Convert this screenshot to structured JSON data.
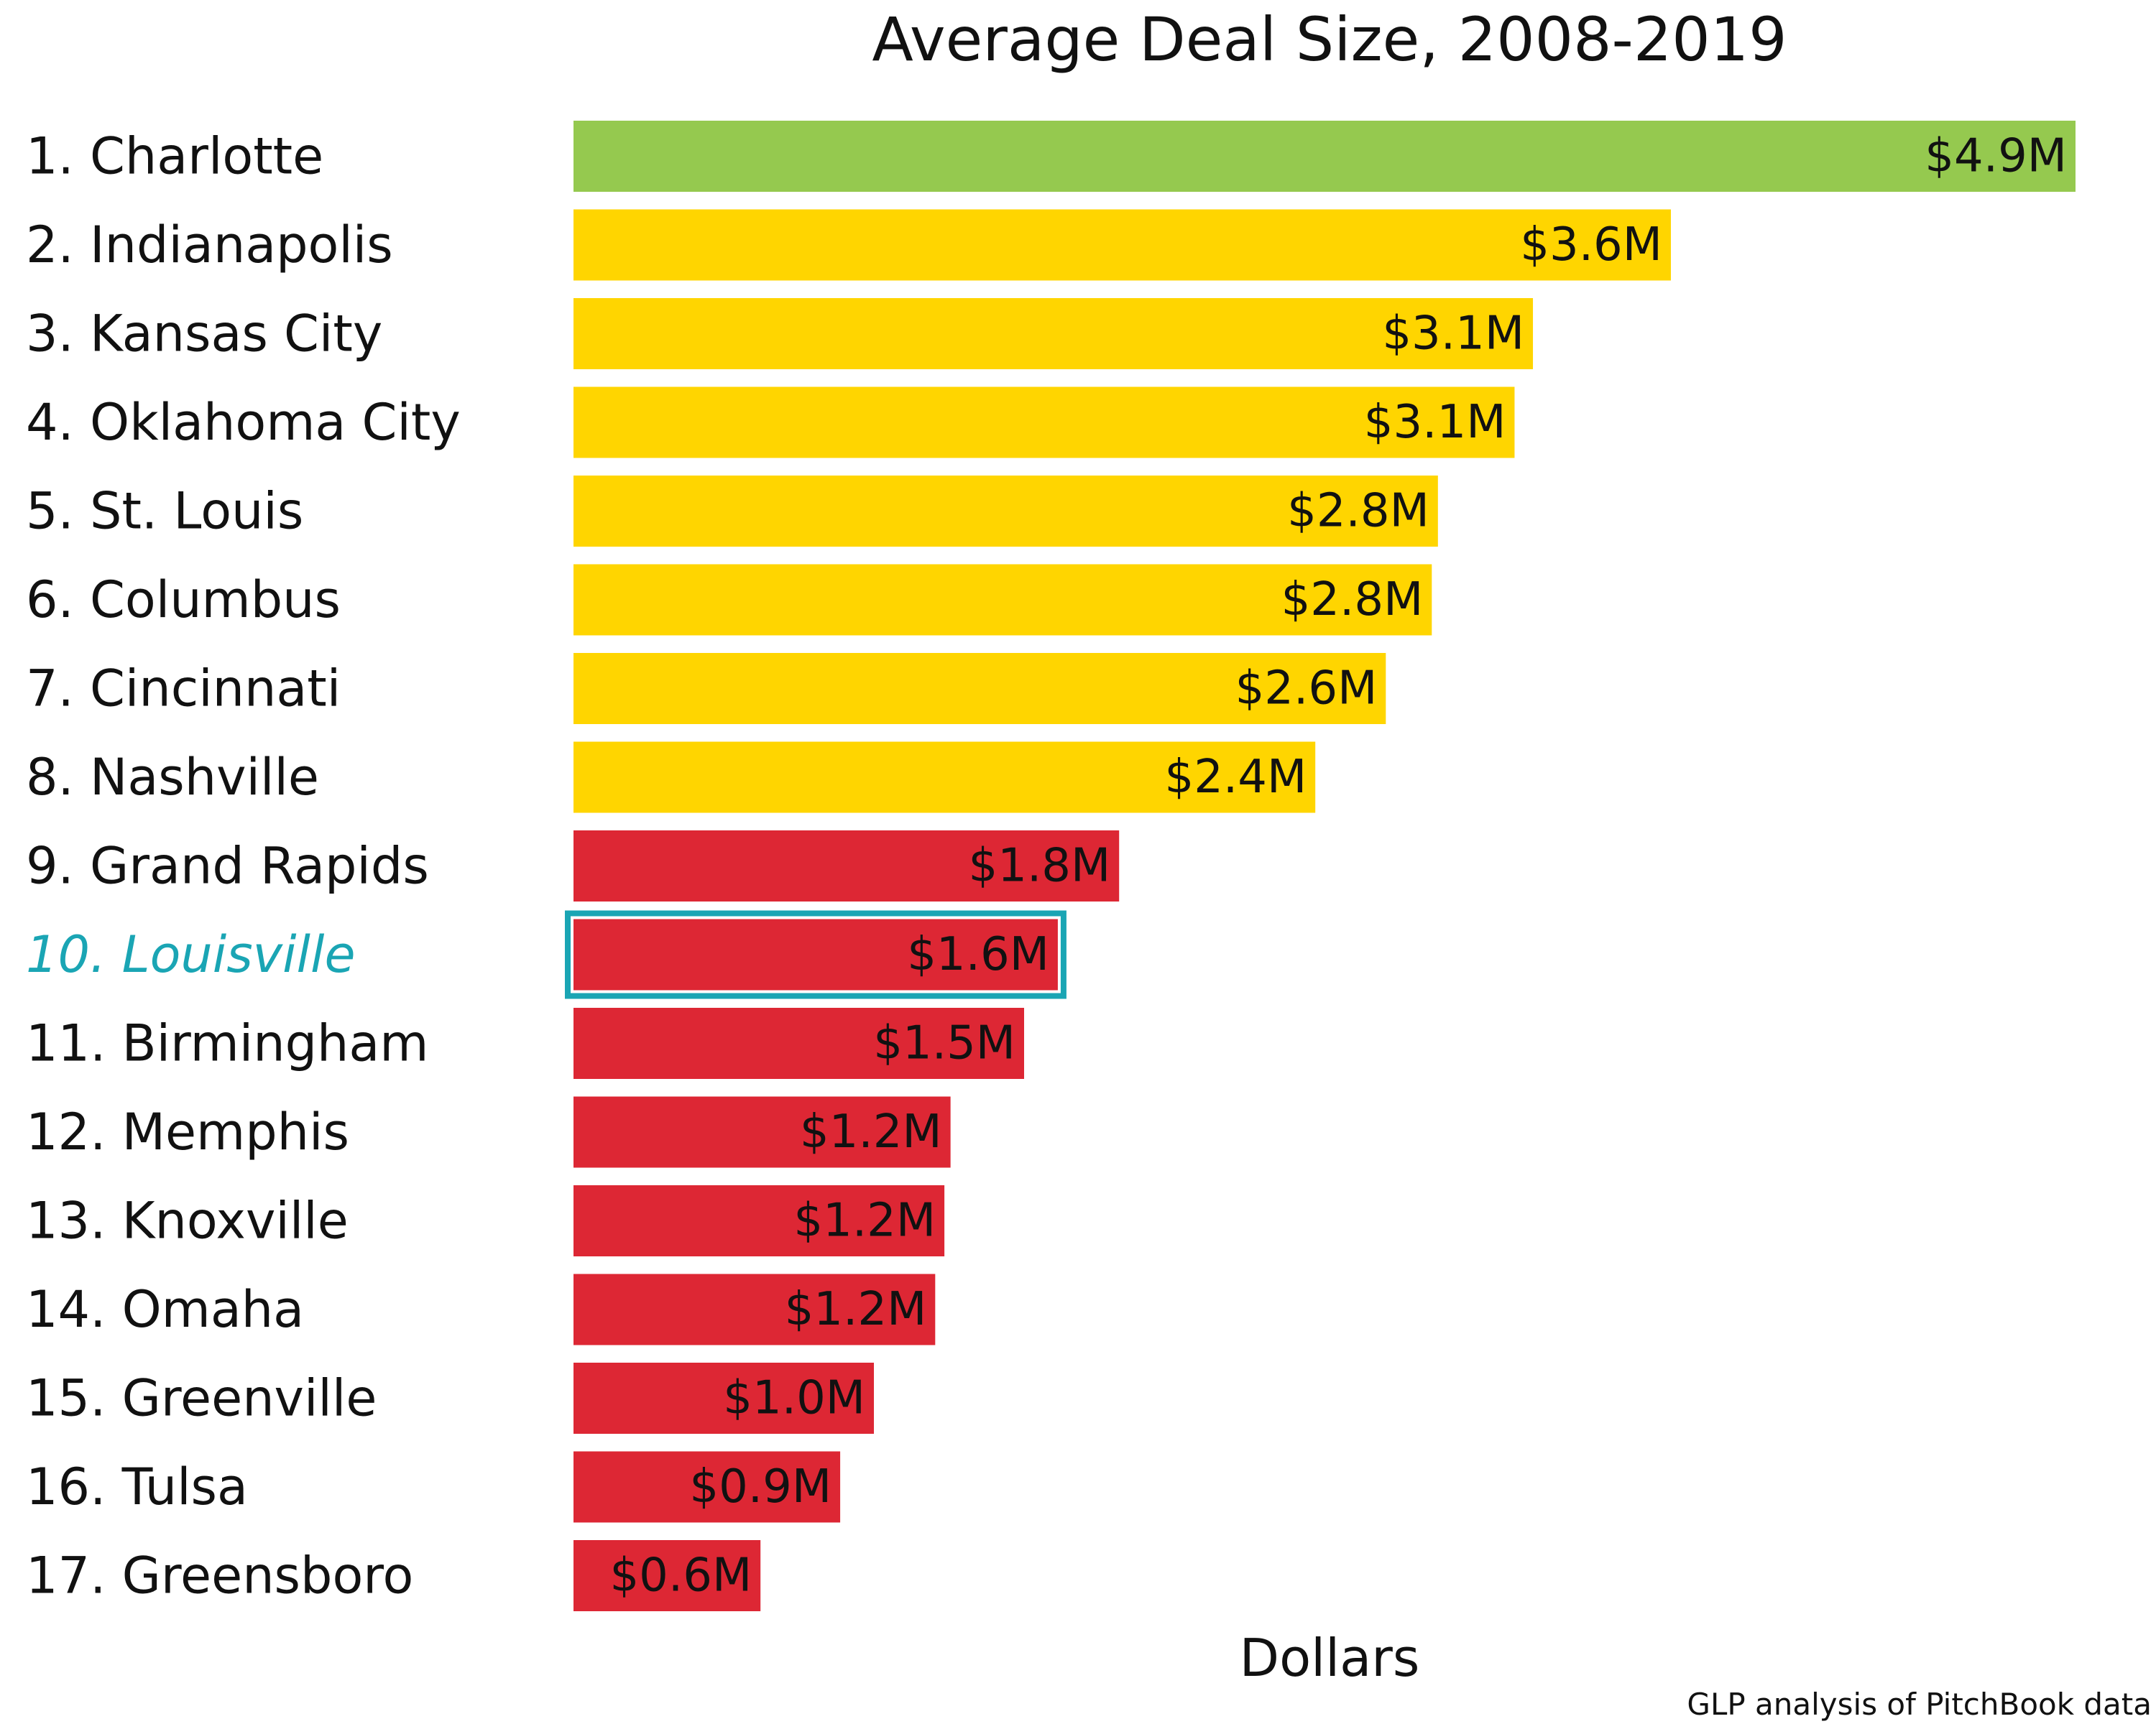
{
  "chart_data": {
    "type": "bar",
    "orientation": "horizontal",
    "title": "Average Deal Size, 2008-2019",
    "xlabel": "Dollars",
    "ylabel": "",
    "source": "GLP analysis of PitchBook data",
    "grid": false,
    "legend": "none",
    "xlim": [
      0,
      4.9
    ],
    "unit": "$M",
    "categories": [
      "1. Charlotte",
      "2. Indianapolis",
      "3. Kansas City",
      "4. Oklahoma City",
      "5. St. Louis",
      "6. Columbus",
      "7. Cincinnati",
      "8. Nashville",
      "9. Grand Rapids",
      "10. Louisville",
      "11. Birmingham",
      "12. Memphis",
      "13. Knoxville",
      "14. Omaha",
      "15. Greenville",
      "16. Tulsa",
      "17. Greensboro"
    ],
    "values": [
      4.9,
      3.58,
      3.13,
      3.07,
      2.82,
      2.8,
      2.65,
      2.42,
      1.78,
      1.58,
      1.47,
      1.23,
      1.21,
      1.18,
      0.98,
      0.87,
      0.61
    ],
    "data_labels": [
      "$4.9M",
      "$3.6M",
      "$3.1M",
      "$3.1M",
      "$2.8M",
      "$2.8M",
      "$2.6M",
      "$2.4M",
      "$1.8M",
      "$1.6M",
      "$1.5M",
      "$1.2M",
      "$1.2M",
      "$1.2M",
      "$1.0M",
      "$0.9M",
      "$0.6M"
    ],
    "tiers": [
      "top",
      "middle",
      "middle",
      "middle",
      "middle",
      "middle",
      "middle",
      "middle",
      "bottom",
      "bottom",
      "bottom",
      "bottom",
      "bottom",
      "bottom",
      "bottom",
      "bottom",
      "bottom"
    ],
    "colors": {
      "top": "#95c94f",
      "middle": "#ffd500",
      "bottom": "#dd2734",
      "highlight": "#1aa5b4"
    },
    "highlight_index": 9
  }
}
